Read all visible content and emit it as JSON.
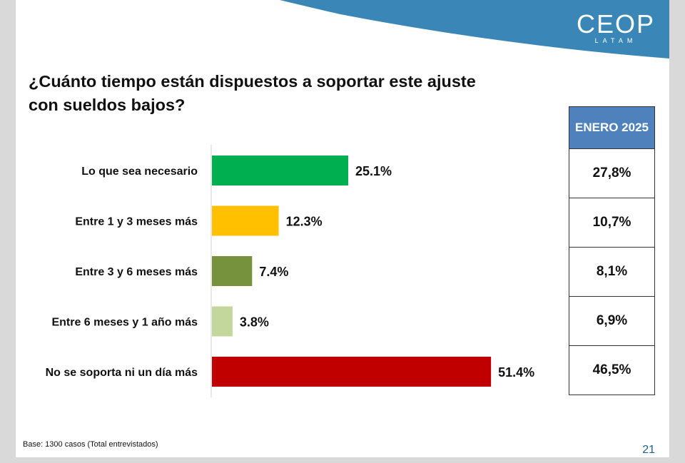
{
  "brand": {
    "name": "CEOP",
    "subtitle": "LATAM",
    "accent": "#3a87b7"
  },
  "title": "¿Cuánto tiempo están dispuestos a soportar este ajuste con sueldos bajos?",
  "chart_data": {
    "type": "bar",
    "orientation": "horizontal",
    "title": "¿Cuánto tiempo están dispuestos a soportar este ajuste con sueldos bajos?",
    "categories": [
      "Lo que sea necesario",
      "Entre 1 y 3 meses más",
      "Entre 3 y 6 meses más",
      "Entre 6 meses y 1 año más",
      "No se soporta ni un día más"
    ],
    "values": [
      25.1,
      12.3,
      7.4,
      3.8,
      51.4
    ],
    "value_labels": [
      "25.1%",
      "12.3%",
      "7.4%",
      "3.8%",
      "51.4%"
    ],
    "colors": [
      "#00b050",
      "#ffc000",
      "#76923c",
      "#c3d69b",
      "#c00000"
    ],
    "xlim": [
      0,
      100
    ],
    "xlabel": "",
    "ylabel": "",
    "grid": false
  },
  "comparison_table": {
    "header": "ENERO 2025",
    "values": [
      "27,8%",
      "10,7%",
      "8,1%",
      "6,9%",
      "46,5%"
    ]
  },
  "footer": {
    "base": "Base:  1300 casos (Total entrevistados)",
    "page": "21"
  }
}
